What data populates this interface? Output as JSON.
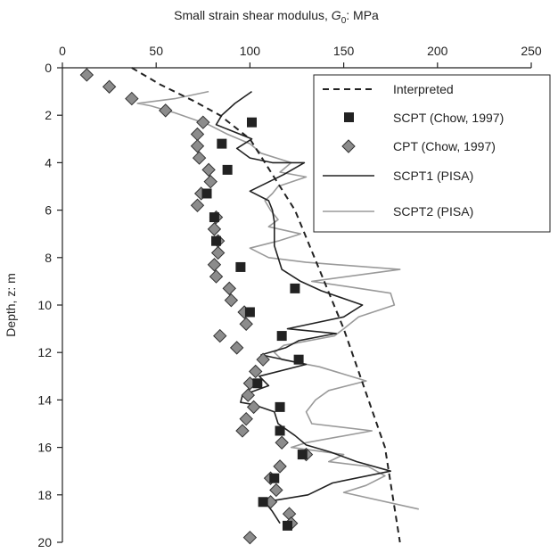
{
  "chart_data": {
    "type": "scatter",
    "x_axis": {
      "label_prefix": "Small strain shear modulus, ",
      "label_symbol": "G",
      "label_subscript": "0",
      "label_suffix": ": MPa",
      "range": [
        0,
        250
      ],
      "ticks": [
        0,
        50,
        100,
        150,
        200,
        250
      ],
      "position": "top"
    },
    "y_axis": {
      "label": "Depth, z: m",
      "range": [
        0,
        20
      ],
      "ticks": [
        0,
        2,
        4,
        6,
        8,
        10,
        12,
        14,
        16,
        18,
        20
      ],
      "inverted": true
    },
    "grid": false,
    "legend_position": "top-right",
    "series": [
      {
        "name": "Interpreted",
        "kind": "line",
        "style": "dashed",
        "color": "#222222",
        "points": [
          [
            37,
            0
          ],
          [
            52,
            0.7
          ],
          [
            70,
            1.4
          ],
          [
            84,
            2.0
          ],
          [
            100,
            3.0
          ],
          [
            124,
            6.0
          ],
          [
            150,
            11.0
          ],
          [
            172,
            16.0
          ],
          [
            180,
            20.0
          ]
        ]
      },
      {
        "name": "SCPT (Chow, 1997)",
        "kind": "marker",
        "marker": "square",
        "color": "#222222",
        "points": [
          [
            101,
            2.3
          ],
          [
            85,
            3.2
          ],
          [
            88,
            4.3
          ],
          [
            77,
            5.3
          ],
          [
            81,
            6.3
          ],
          [
            82,
            7.3
          ],
          [
            95,
            8.4
          ],
          [
            124,
            9.3
          ],
          [
            100,
            10.3
          ],
          [
            117,
            11.3
          ],
          [
            126,
            12.3
          ],
          [
            104,
            13.3
          ],
          [
            116,
            14.3
          ],
          [
            116,
            15.3
          ],
          [
            128,
            16.3
          ],
          [
            113,
            17.3
          ],
          [
            107,
            18.3
          ],
          [
            120,
            19.3
          ]
        ]
      },
      {
        "name": "CPT (Chow, 1997)",
        "kind": "marker",
        "marker": "diamond",
        "color": "#8c8c8c",
        "points": [
          [
            13,
            0.3
          ],
          [
            25,
            0.8
          ],
          [
            37,
            1.3
          ],
          [
            55,
            1.8
          ],
          [
            75,
            2.3
          ],
          [
            72,
            2.8
          ],
          [
            72,
            3.3
          ],
          [
            73,
            3.8
          ],
          [
            78,
            4.3
          ],
          [
            79,
            4.8
          ],
          [
            74,
            5.3
          ],
          [
            72,
            5.8
          ],
          [
            82,
            6.3
          ],
          [
            81,
            6.8
          ],
          [
            83,
            7.3
          ],
          [
            83,
            7.8
          ],
          [
            81,
            8.3
          ],
          [
            82,
            8.8
          ],
          [
            89,
            9.3
          ],
          [
            90,
            9.8
          ],
          [
            97,
            10.3
          ],
          [
            98,
            10.8
          ],
          [
            84,
            11.3
          ],
          [
            93,
            11.8
          ],
          [
            107,
            12.3
          ],
          [
            103,
            12.8
          ],
          [
            100,
            13.3
          ],
          [
            99,
            13.8
          ],
          [
            102,
            14.3
          ],
          [
            98,
            14.8
          ],
          [
            96,
            15.3
          ],
          [
            117,
            15.8
          ],
          [
            130,
            16.3
          ],
          [
            116,
            16.8
          ],
          [
            111,
            17.3
          ],
          [
            114,
            17.8
          ],
          [
            111,
            18.3
          ],
          [
            121,
            18.8
          ],
          [
            122,
            19.2
          ],
          [
            100,
            19.8
          ]
        ]
      },
      {
        "name": "SCPT1 (PISA)",
        "kind": "line",
        "style": "solid",
        "color": "#222222",
        "points": [
          [
            101,
            1.0
          ],
          [
            92,
            1.5
          ],
          [
            85,
            2.0
          ],
          [
            82,
            2.4
          ],
          [
            101,
            3.0
          ],
          [
            93,
            3.4
          ],
          [
            100,
            3.8
          ],
          [
            112,
            4.0
          ],
          [
            129,
            4.0
          ],
          [
            118,
            4.5
          ],
          [
            100,
            5.2
          ],
          [
            110,
            5.6
          ],
          [
            112,
            6.0
          ],
          [
            113,
            6.5
          ],
          [
            113,
            7.0
          ],
          [
            113,
            7.5
          ],
          [
            115,
            8.0
          ],
          [
            117,
            8.5
          ],
          [
            127,
            9.0
          ],
          [
            138,
            9.4
          ],
          [
            160,
            10.0
          ],
          [
            150,
            10.5
          ],
          [
            120,
            11.0
          ],
          [
            146,
            11.2
          ],
          [
            126,
            11.5
          ],
          [
            119,
            11.8
          ],
          [
            106,
            12.1
          ],
          [
            130,
            12.5
          ],
          [
            105,
            13.0
          ],
          [
            110,
            13.4
          ],
          [
            96,
            13.8
          ],
          [
            95,
            14.1
          ],
          [
            102,
            14.2
          ],
          [
            113,
            14.5
          ],
          [
            115,
            15.0
          ],
          [
            124,
            15.5
          ],
          [
            130,
            15.9
          ],
          [
            143,
            16.2
          ],
          [
            157,
            16.6
          ],
          [
            175,
            17.0
          ],
          [
            144,
            17.5
          ],
          [
            131,
            18.0
          ],
          [
            108,
            18.3
          ],
          [
            112,
            18.7
          ],
          [
            116,
            19.2
          ]
        ]
      },
      {
        "name": "SCPT2 (PISA)",
        "kind": "line",
        "style": "solid",
        "color": "#9a9a9a",
        "points": [
          [
            78,
            1.0
          ],
          [
            60,
            1.3
          ],
          [
            40,
            1.5
          ],
          [
            47,
            1.6
          ],
          [
            60,
            1.9
          ],
          [
            78,
            2.4
          ],
          [
            88,
            2.8
          ],
          [
            100,
            3.2
          ],
          [
            106,
            3.6
          ],
          [
            122,
            4.0
          ],
          [
            116,
            4.4
          ],
          [
            130,
            4.6
          ],
          [
            115,
            5.0
          ],
          [
            112,
            5.3
          ],
          [
            108,
            5.6
          ],
          [
            111,
            6.0
          ],
          [
            115,
            6.4
          ],
          [
            110,
            6.7
          ],
          [
            127,
            7.0
          ],
          [
            115,
            7.3
          ],
          [
            100,
            7.6
          ],
          [
            110,
            8.0
          ],
          [
            130,
            8.2
          ],
          [
            180,
            8.5
          ],
          [
            133,
            9.0
          ],
          [
            150,
            9.2
          ],
          [
            175,
            9.5
          ],
          [
            177,
            10.0
          ],
          [
            158,
            10.5
          ],
          [
            150,
            11.0
          ],
          [
            145,
            11.3
          ],
          [
            118,
            11.7
          ],
          [
            113,
            12.0
          ],
          [
            117,
            12.3
          ],
          [
            137,
            12.6
          ],
          [
            162,
            13.2
          ],
          [
            142,
            13.6
          ],
          [
            135,
            14.0
          ],
          [
            130,
            14.5
          ],
          [
            133,
            15.0
          ],
          [
            165,
            15.3
          ],
          [
            130,
            15.8
          ],
          [
            122,
            16.0
          ],
          [
            150,
            16.3
          ],
          [
            142,
            16.6
          ],
          [
            163,
            16.8
          ],
          [
            172,
            17.2
          ],
          [
            162,
            17.6
          ],
          [
            150,
            17.9
          ],
          [
            190,
            18.6
          ]
        ]
      }
    ]
  }
}
